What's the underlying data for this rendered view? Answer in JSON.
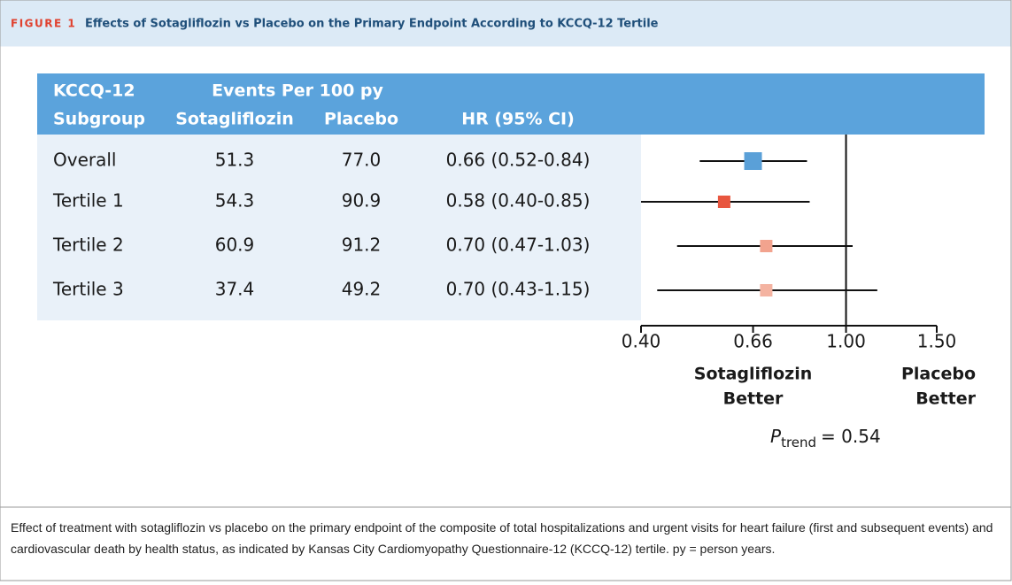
{
  "figure_label": "FIGURE 1",
  "title": "Effects of Sotagliflozin vs Placebo on the Primary Endpoint According to KCCQ-12 Tertile",
  "table": {
    "headers": {
      "subgroup": "KCCQ-12 Subgroup",
      "events": "Events Per 100 py",
      "sota": "Sotagliflozin",
      "placebo": "Placebo",
      "hr": "HR (95% CI)"
    },
    "rows": [
      [
        "51.3",
        "77.0"
      ],
      [
        "54.3",
        "90.9"
      ],
      [
        "60.9",
        "91.2"
      ],
      [
        "37.4",
        "49.2"
      ]
    ]
  },
  "chart_data": {
    "type": "forest",
    "categories": [
      "Overall",
      "Tertile 1",
      "Tertile 2",
      "Tertile 3"
    ],
    "values": [
      0.66,
      0.58,
      0.7,
      0.7
    ],
    "lower": [
      0.52,
      0.4,
      0.47,
      0.43
    ],
    "upper": [
      0.84,
      0.85,
      1.03,
      1.15
    ],
    "value_labels": [
      "0.66 (0.52-0.84)",
      "0.58 (0.40-0.85)",
      "0.70 (0.47-1.03)",
      "0.70 (0.43-1.15)"
    ],
    "colors": [
      "#5aa0d8",
      "#e8563f",
      "#f2a38e",
      "#f4b3a1"
    ],
    "xlim": [
      0.4,
      1.5
    ],
    "xscale": "log",
    "xticks": [
      {
        "value": 0.4,
        "label": "0.40"
      },
      {
        "value": 0.66,
        "label": "0.66"
      },
      {
        "value": 1,
        "label": "1.00"
      },
      {
        "value": 1.5,
        "label": "1.50"
      }
    ],
    "reference_line": 1,
    "left_label": "Sotagliflozin Better",
    "right_label": "Placebo Better",
    "p_trend": {
      "symbol": "P",
      "subscript": "trend",
      "value": "= 0.54"
    }
  },
  "caption": "Effect of treatment with sotagliflozin vs placebo on the primary endpoint of the composite of total hospitalizations and urgent visits for heart failure (first and subsequent events) and cardiovascular death by health status, as indicated by Kansas City Cardiomyopathy Questionnaire-12 (KCCQ-12) tertile. py = person years."
}
